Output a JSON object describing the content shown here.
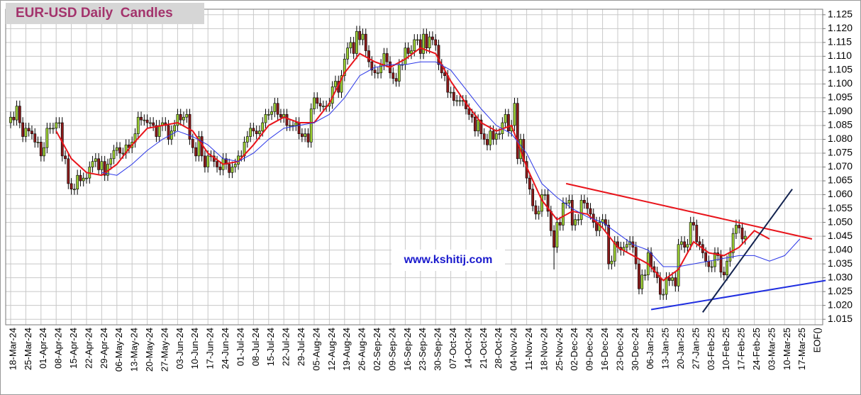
{
  "chart_data": {
    "type": "candlestick",
    "title": "EUR-USD Daily  Candles",
    "watermark": "www.kshitij.com",
    "categories": [
      "18-Mar-24",
      "25-Mar-24",
      "01-Apr-24",
      "08-Apr-24",
      "15-Apr-24",
      "22-Apr-24",
      "29-Apr-24",
      "06-May-24",
      "13-May-24",
      "20-May-24",
      "27-May-24",
      "03-Jun-24",
      "10-Jun-24",
      "17-Jun-24",
      "24-Jun-24",
      "01-Jul-24",
      "08-Jul-24",
      "15-Jul-24",
      "22-Jul-24",
      "29-Jul-24",
      "05-Aug-24",
      "12-Aug-24",
      "19-Aug-24",
      "26-Aug-24",
      "02-Sep-24",
      "09-Sep-24",
      "16-Sep-24",
      "23-Sep-24",
      "30-Sep-24",
      "07-Oct-24",
      "14-Oct-24",
      "21-Oct-24",
      "28-Oct-24",
      "04-Nov-24",
      "11-Nov-24",
      "18-Nov-24",
      "25-Nov-24",
      "02-Dec-24",
      "09-Dec-24",
      "16-Dec-24",
      "23-Dec-24",
      "30-Dec-24",
      "06-Jan-25",
      "13-Jan-25",
      "20-Jan-25",
      "27-Jan-25",
      "03-Feb-25",
      "10-Feb-25",
      "17-Feb-25",
      "24-Feb-25",
      "03-Mar-25",
      "10-Mar-25",
      "17-Mar-25",
      "EOF()"
    ],
    "candles": {
      "open": [
        1.086,
        1.088,
        1.087,
        1.092,
        1.086,
        1.081,
        1.084,
        1.083,
        1.082,
        1.079,
        1.079,
        1.074,
        1.077,
        1.084,
        1.084,
        1.084,
        1.086,
        1.086,
        1.074,
        1.073,
        1.064,
        1.062,
        1.062,
        1.067,
        1.065,
        1.066,
        1.066,
        1.07,
        1.072,
        1.073,
        1.069,
        1.072,
        1.067,
        1.071,
        1.073,
        1.076,
        1.077,
        1.075,
        1.075,
        1.078,
        1.077,
        1.079,
        1.082,
        1.088,
        1.087,
        1.087,
        1.086,
        1.086,
        1.085,
        1.081,
        1.085,
        1.086,
        1.085,
        1.08,
        1.083,
        1.085,
        1.089,
        1.087,
        1.088,
        1.089,
        1.08,
        1.077,
        1.074,
        1.081,
        1.074,
        1.07,
        1.074,
        1.074,
        1.072,
        1.07,
        1.069,
        1.073,
        1.071,
        1.068,
        1.07,
        1.071,
        1.074,
        1.074,
        1.079,
        1.081,
        1.084,
        1.083,
        1.082,
        1.083,
        1.086,
        1.089,
        1.089,
        1.09,
        1.093,
        1.089,
        1.088,
        1.089,
        1.085,
        1.085,
        1.085,
        1.086,
        1.082,
        1.081,
        1.082,
        1.079,
        1.091,
        1.095,
        1.093,
        1.092,
        1.092,
        1.092,
        1.093,
        1.099,
        1.101,
        1.097,
        1.103,
        1.109,
        1.113,
        1.115,
        1.111,
        1.119,
        1.116,
        1.118,
        1.112,
        1.108,
        1.105,
        1.104,
        1.104,
        1.107,
        1.111,
        1.108,
        1.104,
        1.102,
        1.101,
        1.107,
        1.107,
        1.113,
        1.111,
        1.112,
        1.116,
        1.116,
        1.111,
        1.118,
        1.113,
        1.117,
        1.116,
        1.114,
        1.107,
        1.104,
        1.103,
        1.097,
        1.097,
        1.094,
        1.094,
        1.094,
        1.094,
        1.091,
        1.089,
        1.088,
        1.083,
        1.087,
        1.082,
        1.08,
        1.078,
        1.083,
        1.08,
        1.082,
        1.082,
        1.086,
        1.089,
        1.083,
        1.085,
        1.093,
        1.073,
        1.08,
        1.072,
        1.066,
        1.062,
        1.056,
        1.053,
        1.054,
        1.06,
        1.06,
        1.054,
        1.047,
        1.041,
        1.05,
        1.049,
        1.057,
        1.057,
        1.058,
        1.049,
        1.051,
        1.051,
        1.058,
        1.057,
        1.055,
        1.053,
        1.05,
        1.047,
        1.05,
        1.051,
        1.049,
        1.035,
        1.036,
        1.043,
        1.041,
        1.04,
        1.041,
        1.042,
        1.043,
        1.041,
        1.035,
        1.026,
        1.031,
        1.031,
        1.039,
        1.034,
        1.032,
        1.03,
        1.024,
        1.024,
        1.03,
        1.029,
        1.03,
        1.027,
        1.042,
        1.043,
        1.041,
        1.042,
        1.05,
        1.049,
        1.043,
        1.042,
        1.039,
        1.036,
        1.034,
        1.034,
        1.039,
        1.038,
        1.032,
        1.031,
        1.036,
        1.039,
        1.046,
        1.049,
        1.048,
        1.044
      ],
      "high": [
        1.09,
        1.09,
        1.094,
        1.094,
        1.088,
        1.086,
        1.086,
        1.085,
        1.084,
        1.081,
        1.081,
        1.079,
        1.086,
        1.086,
        1.086,
        1.088,
        1.088,
        1.088,
        1.076,
        1.075,
        1.066,
        1.064,
        1.069,
        1.069,
        1.068,
        1.068,
        1.072,
        1.074,
        1.075,
        1.075,
        1.074,
        1.074,
        1.073,
        1.075,
        1.078,
        1.079,
        1.079,
        1.077,
        1.08,
        1.08,
        1.081,
        1.084,
        1.09,
        1.09,
        1.089,
        1.089,
        1.088,
        1.088,
        1.087,
        1.087,
        1.088,
        1.088,
        1.087,
        1.085,
        1.087,
        1.091,
        1.091,
        1.09,
        1.091,
        1.091,
        1.082,
        1.079,
        1.083,
        1.083,
        1.076,
        1.076,
        1.076,
        1.076,
        1.074,
        1.072,
        1.075,
        1.075,
        1.073,
        1.072,
        1.073,
        1.076,
        1.076,
        1.081,
        1.083,
        1.086,
        1.086,
        1.085,
        1.085,
        1.088,
        1.091,
        1.091,
        1.092,
        1.095,
        1.095,
        1.091,
        1.091,
        1.091,
        1.087,
        1.087,
        1.088,
        1.088,
        1.084,
        1.084,
        1.084,
        1.093,
        1.097,
        1.097,
        1.095,
        1.094,
        1.094,
        1.095,
        1.101,
        1.103,
        1.103,
        1.105,
        1.111,
        1.115,
        1.117,
        1.117,
        1.121,
        1.121,
        1.12,
        1.12,
        1.114,
        1.11,
        1.107,
        1.106,
        1.109,
        1.113,
        1.113,
        1.11,
        1.106,
        1.104,
        1.109,
        1.109,
        1.115,
        1.115,
        1.114,
        1.118,
        1.118,
        1.118,
        1.12,
        1.12,
        1.119,
        1.119,
        1.118,
        1.116,
        1.109,
        1.106,
        1.105,
        1.099,
        1.099,
        1.096,
        1.096,
        1.096,
        1.096,
        1.093,
        1.091,
        1.09,
        1.089,
        1.089,
        1.084,
        1.082,
        1.085,
        1.085,
        1.084,
        1.084,
        1.088,
        1.091,
        1.091,
        1.087,
        1.095,
        1.095,
        1.082,
        1.082,
        1.074,
        1.068,
        1.064,
        1.058,
        1.056,
        1.062,
        1.062,
        1.062,
        1.056,
        1.049,
        1.052,
        1.052,
        1.059,
        1.059,
        1.06,
        1.06,
        1.053,
        1.053,
        1.06,
        1.06,
        1.059,
        1.057,
        1.055,
        1.052,
        1.052,
        1.053,
        1.053,
        1.051,
        1.038,
        1.045,
        1.045,
        1.043,
        1.043,
        1.044,
        1.045,
        1.045,
        1.043,
        1.037,
        1.033,
        1.033,
        1.041,
        1.041,
        1.036,
        1.034,
        1.032,
        1.026,
        1.032,
        1.032,
        1.032,
        1.032,
        1.044,
        1.045,
        1.045,
        1.044,
        1.052,
        1.052,
        1.051,
        1.045,
        1.044,
        1.041,
        1.038,
        1.036,
        1.041,
        1.041,
        1.04,
        1.034,
        1.038,
        1.041,
        1.048,
        1.051,
        1.051,
        1.05,
        1.047
      ],
      "low": [
        1.084,
        1.085,
        1.085,
        1.084,
        1.079,
        1.079,
        1.081,
        1.08,
        1.077,
        1.077,
        1.072,
        1.072,
        1.075,
        1.082,
        1.082,
        1.082,
        1.084,
        1.072,
        1.071,
        1.062,
        1.06,
        1.06,
        1.06,
        1.063,
        1.063,
        1.064,
        1.064,
        1.068,
        1.07,
        1.067,
        1.067,
        1.065,
        1.065,
        1.069,
        1.071,
        1.074,
        1.073,
        1.073,
        1.073,
        1.075,
        1.075,
        1.077,
        1.08,
        1.085,
        1.085,
        1.084,
        1.084,
        1.083,
        1.079,
        1.079,
        1.083,
        1.083,
        1.078,
        1.078,
        1.081,
        1.083,
        1.085,
        1.085,
        1.086,
        1.078,
        1.075,
        1.072,
        1.072,
        1.072,
        1.068,
        1.068,
        1.072,
        1.07,
        1.068,
        1.067,
        1.067,
        1.069,
        1.066,
        1.066,
        1.068,
        1.069,
        1.072,
        1.072,
        1.077,
        1.079,
        1.081,
        1.08,
        1.08,
        1.081,
        1.084,
        1.087,
        1.087,
        1.088,
        1.087,
        1.086,
        1.086,
        1.083,
        1.083,
        1.083,
        1.083,
        1.08,
        1.079,
        1.079,
        1.077,
        1.077,
        1.089,
        1.091,
        1.09,
        1.09,
        1.09,
        1.09,
        1.091,
        1.097,
        1.095,
        1.095,
        1.101,
        1.107,
        1.111,
        1.109,
        1.109,
        1.114,
        1.114,
        1.11,
        1.106,
        1.103,
        1.102,
        1.102,
        1.102,
        1.105,
        1.106,
        1.102,
        1.1,
        1.099,
        1.099,
        1.105,
        1.105,
        1.109,
        1.109,
        1.11,
        1.114,
        1.109,
        1.109,
        1.111,
        1.111,
        1.114,
        1.112,
        1.105,
        1.102,
        1.101,
        1.095,
        1.095,
        1.092,
        1.092,
        1.092,
        1.092,
        1.089,
        1.087,
        1.086,
        1.081,
        1.081,
        1.08,
        1.078,
        1.076,
        1.076,
        1.078,
        1.078,
        1.08,
        1.08,
        1.084,
        1.081,
        1.081,
        1.083,
        1.071,
        1.071,
        1.07,
        1.064,
        1.06,
        1.054,
        1.051,
        1.051,
        1.052,
        1.058,
        1.052,
        1.045,
        1.033,
        1.039,
        1.047,
        1.047,
        1.055,
        1.055,
        1.047,
        1.047,
        1.049,
        1.049,
        1.055,
        1.053,
        1.051,
        1.048,
        1.045,
        1.045,
        1.048,
        1.047,
        1.033,
        1.033,
        1.034,
        1.039,
        1.038,
        1.038,
        1.039,
        1.04,
        1.039,
        1.033,
        1.024,
        1.024,
        1.029,
        1.029,
        1.032,
        1.03,
        1.028,
        1.022,
        1.022,
        1.022,
        1.027,
        1.027,
        1.025,
        1.025,
        1.04,
        1.039,
        1.039,
        1.04,
        1.047,
        1.041,
        1.04,
        1.037,
        1.034,
        1.032,
        1.032,
        1.032,
        1.036,
        1.03,
        1.029,
        1.029,
        1.034,
        1.037,
        1.044,
        1.046,
        1.042,
        1.042
      ],
      "close": [
        1.088,
        1.087,
        1.092,
        1.086,
        1.081,
        1.084,
        1.083,
        1.082,
        1.079,
        1.079,
        1.074,
        1.077,
        1.084,
        1.084,
        1.084,
        1.086,
        1.086,
        1.074,
        1.073,
        1.064,
        1.062,
        1.062,
        1.067,
        1.065,
        1.066,
        1.066,
        1.07,
        1.072,
        1.073,
        1.069,
        1.072,
        1.067,
        1.071,
        1.073,
        1.076,
        1.077,
        1.075,
        1.075,
        1.078,
        1.077,
        1.079,
        1.082,
        1.088,
        1.087,
        1.087,
        1.086,
        1.086,
        1.085,
        1.081,
        1.085,
        1.086,
        1.085,
        1.08,
        1.083,
        1.085,
        1.089,
        1.087,
        1.088,
        1.089,
        1.08,
        1.077,
        1.074,
        1.081,
        1.074,
        1.07,
        1.074,
        1.074,
        1.072,
        1.07,
        1.069,
        1.073,
        1.071,
        1.068,
        1.07,
        1.071,
        1.074,
        1.074,
        1.079,
        1.081,
        1.084,
        1.083,
        1.082,
        1.083,
        1.086,
        1.089,
        1.089,
        1.09,
        1.093,
        1.089,
        1.088,
        1.089,
        1.085,
        1.085,
        1.085,
        1.086,
        1.082,
        1.081,
        1.082,
        1.079,
        1.091,
        1.095,
        1.093,
        1.092,
        1.092,
        1.092,
        1.093,
        1.099,
        1.101,
        1.097,
        1.103,
        1.109,
        1.113,
        1.115,
        1.111,
        1.119,
        1.116,
        1.118,
        1.112,
        1.108,
        1.105,
        1.104,
        1.104,
        1.107,
        1.111,
        1.108,
        1.104,
        1.102,
        1.101,
        1.107,
        1.107,
        1.113,
        1.111,
        1.112,
        1.116,
        1.116,
        1.111,
        1.118,
        1.113,
        1.117,
        1.116,
        1.114,
        1.107,
        1.104,
        1.103,
        1.097,
        1.097,
        1.094,
        1.094,
        1.094,
        1.094,
        1.091,
        1.089,
        1.088,
        1.083,
        1.087,
        1.082,
        1.08,
        1.078,
        1.083,
        1.08,
        1.082,
        1.082,
        1.086,
        1.089,
        1.083,
        1.085,
        1.093,
        1.073,
        1.08,
        1.072,
        1.066,
        1.062,
        1.056,
        1.053,
        1.054,
        1.06,
        1.06,
        1.054,
        1.047,
        1.041,
        1.05,
        1.049,
        1.057,
        1.057,
        1.058,
        1.049,
        1.051,
        1.051,
        1.058,
        1.057,
        1.055,
        1.053,
        1.05,
        1.047,
        1.05,
        1.051,
        1.049,
        1.035,
        1.036,
        1.043,
        1.041,
        1.04,
        1.041,
        1.042,
        1.043,
        1.041,
        1.035,
        1.026,
        1.031,
        1.031,
        1.039,
        1.034,
        1.032,
        1.03,
        1.024,
        1.024,
        1.03,
        1.029,
        1.03,
        1.027,
        1.042,
        1.043,
        1.041,
        1.042,
        1.05,
        1.049,
        1.043,
        1.042,
        1.039,
        1.036,
        1.034,
        1.034,
        1.039,
        1.038,
        1.032,
        1.031,
        1.036,
        1.039,
        1.046,
        1.049,
        1.048,
        1.044,
        1.045
      ]
    },
    "up_color": "#9acd32",
    "down_color": "#8b1a1a",
    "lines": [
      {
        "color": "#e8141b",
        "values": [
          null,
          null,
          null,
          1.083,
          1.073,
          1.068,
          1.067,
          1.071,
          1.078,
          1.084,
          1.085,
          1.086,
          1.083,
          1.075,
          1.071,
          1.072,
          1.078,
          1.085,
          1.088,
          1.086,
          1.086,
          1.093,
          1.104,
          1.111,
          1.108,
          1.106,
          1.109,
          1.113,
          1.111,
          1.101,
          1.093,
          1.086,
          1.083,
          1.085,
          1.07,
          1.058,
          1.051,
          1.054,
          1.053,
          1.048,
          1.041,
          1.038,
          1.035,
          1.029,
          1.033,
          1.043,
          1.039,
          1.038,
          1.041,
          1.047,
          1.044,
          null,
          null,
          null
        ]
      },
      {
        "color": "#2a36e8",
        "values": [
          null,
          null,
          null,
          null,
          null,
          null,
          1.068,
          1.067,
          1.071,
          1.076,
          1.08,
          1.083,
          1.081,
          1.078,
          1.073,
          1.072,
          1.075,
          1.08,
          1.084,
          1.085,
          1.086,
          1.089,
          1.095,
          1.103,
          1.106,
          1.107,
          1.107,
          1.108,
          1.108,
          1.105,
          1.098,
          1.091,
          1.085,
          1.082,
          1.075,
          1.064,
          1.059,
          1.055,
          1.052,
          1.05,
          1.046,
          1.042,
          1.04,
          1.034,
          1.034,
          1.035,
          1.036,
          1.037,
          1.038,
          1.038,
          1.036,
          1.038,
          1.044,
          null
        ]
      }
    ],
    "trendlines": [
      {
        "color": "#e8141b",
        "x": [
          36.6,
          52.8
        ],
        "y": [
          1.064,
          1.044
        ]
      },
      {
        "color": "#1f2ee0",
        "x": [
          42.2,
          53.7
        ],
        "y": [
          1.0185,
          1.029
        ]
      },
      {
        "color": "#13234f",
        "x": [
          45.6,
          51.5
        ],
        "y": [
          1.0175,
          1.062
        ]
      }
    ],
    "ylim": [
      1.013,
      1.127
    ],
    "yticks": [
      1.015,
      {
        "value": 1.02,
        "label": "1.020"
      },
      1.025,
      {
        "value": 1.03,
        "label": "1.030"
      },
      1.035,
      {
        "value": 1.04,
        "label": "1.040"
      },
      1.045,
      {
        "value": 1.05,
        "label": "1.050"
      },
      1.055,
      {
        "value": 1.06,
        "label": "1.060"
      },
      1.065,
      {
        "value": 1.07,
        "label": "1.070"
      },
      1.075,
      {
        "value": 1.08,
        "label": "1.080"
      },
      1.085,
      {
        "value": 1.09,
        "label": "1.090"
      },
      1.095,
      {
        "value": 1.1,
        "label": "1.100"
      },
      1.105,
      {
        "value": 1.11,
        "label": "1.110"
      },
      1.115,
      {
        "value": 1.12,
        "label": "1.120"
      },
      1.125
    ],
    "grid": true
  }
}
